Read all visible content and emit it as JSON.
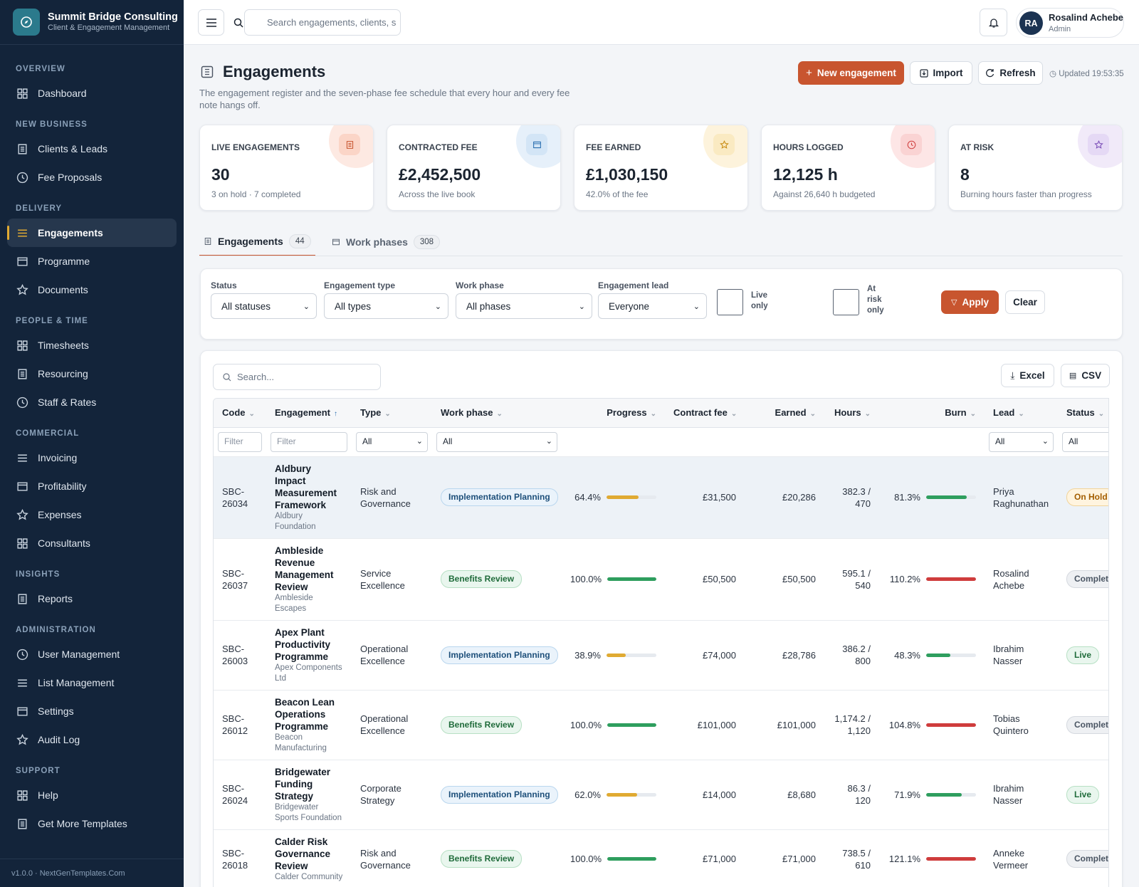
{
  "brand": {
    "name": "Summit Bridge Consulting",
    "tagline": "Client & Engagement Management"
  },
  "sidebar": {
    "sections": [
      {
        "title": "OVERVIEW",
        "items": [
          {
            "label": "Dashboard"
          }
        ]
      },
      {
        "title": "NEW BUSINESS",
        "items": [
          {
            "label": "Clients & Leads"
          },
          {
            "label": "Fee Proposals"
          }
        ]
      },
      {
        "title": "DELIVERY",
        "items": [
          {
            "label": "Engagements",
            "active": true
          },
          {
            "label": "Programme"
          },
          {
            "label": "Documents"
          }
        ]
      },
      {
        "title": "PEOPLE & TIME",
        "items": [
          {
            "label": "Timesheets"
          },
          {
            "label": "Resourcing"
          },
          {
            "label": "Staff & Rates"
          }
        ]
      },
      {
        "title": "COMMERCIAL",
        "items": [
          {
            "label": "Invoicing"
          },
          {
            "label": "Profitability"
          },
          {
            "label": "Expenses"
          },
          {
            "label": "Consultants"
          }
        ]
      },
      {
        "title": "INSIGHTS",
        "items": [
          {
            "label": "Reports"
          }
        ]
      },
      {
        "title": "ADMINISTRATION",
        "items": [
          {
            "label": "User Management"
          },
          {
            "label": "List Management"
          },
          {
            "label": "Settings"
          },
          {
            "label": "Audit Log"
          }
        ]
      },
      {
        "title": "SUPPORT",
        "items": [
          {
            "label": "Help"
          },
          {
            "label": "Get More Templates"
          }
        ]
      }
    ],
    "footer": "v1.0.0 · NextGenTemplates.Com"
  },
  "topbar": {
    "search_placeholder": "Search engagements, clients, s",
    "user": {
      "initials": "RA",
      "name": "Rosalind Achebe",
      "role": "Admin"
    }
  },
  "header": {
    "title": "Engagements",
    "subtitle": "The engagement register and the seven-phase fee schedule that every hour and every fee note hangs off.",
    "actions": {
      "new": "New engagement",
      "import": "Import",
      "refresh": "Refresh"
    },
    "updated": "Updated 19:53:35"
  },
  "stats": [
    {
      "label": "LIVE ENGAGEMENTS",
      "value": "30",
      "note": "3 on hold · 7 completed"
    },
    {
      "label": "CONTRACTED FEE",
      "value": "£2,452,500",
      "note": "Across the live book"
    },
    {
      "label": "FEE EARNED",
      "value": "£1,030,150",
      "note": "42.0% of the fee"
    },
    {
      "label": "HOURS LOGGED",
      "value": "12,125 h",
      "note": "Against 26,640 h budgeted"
    },
    {
      "label": "AT RISK",
      "value": "8",
      "note": "Burning hours faster than progress"
    }
  ],
  "tabs": [
    {
      "label": "Engagements",
      "count": 44,
      "active": true
    },
    {
      "label": "Work phases",
      "count": 308
    }
  ],
  "filters": {
    "fields": [
      {
        "label": "Status",
        "value": "All statuses"
      },
      {
        "label": "Engagement type",
        "value": "All types"
      },
      {
        "label": "Work phase",
        "value": "All phases"
      },
      {
        "label": "Engagement lead",
        "value": "Everyone"
      }
    ],
    "checks": [
      "Live only",
      "At risk only"
    ],
    "apply": "Apply",
    "clear": "Clear"
  },
  "table": {
    "search_placeholder": "Search...",
    "exports": [
      "Excel",
      "CSV"
    ],
    "columns": [
      {
        "label": "Code"
      },
      {
        "label": "Engagement",
        "sort": "asc"
      },
      {
        "label": "Type"
      },
      {
        "label": "Work phase"
      },
      {
        "label": "Progress",
        "numeric": true
      },
      {
        "label": "Contract fee",
        "numeric": true
      },
      {
        "label": "Earned",
        "numeric": true
      },
      {
        "label": "Hours",
        "numeric": true
      },
      {
        "label": "Burn",
        "numeric": true
      },
      {
        "label": "Lead"
      },
      {
        "label": "Status"
      }
    ],
    "column_filters": [
      {
        "kind": "input",
        "text": "Filter"
      },
      {
        "kind": "input",
        "text": "Filter"
      },
      {
        "kind": "select",
        "text": "All"
      },
      {
        "kind": "select",
        "text": "All"
      },
      null,
      null,
      null,
      null,
      null,
      {
        "kind": "select",
        "text": "All"
      },
      {
        "kind": "select",
        "text": "All"
      }
    ],
    "rows": [
      {
        "code": "SBC-26034",
        "name": "Aldbury Impact Measurement Framework",
        "client": "Aldbury Foundation",
        "type": "Risk and Governance",
        "phase": {
          "label": "Implementation Planning",
          "tone": "blue"
        },
        "progress": {
          "value": 64.4,
          "label": "64.4%",
          "color": "#e0aa32"
        },
        "fee": "£31,500",
        "earned": "£20,286",
        "hours": "382.3 / 470",
        "burn": {
          "value": 81.3,
          "label": "81.3%",
          "color": "#2e9e5e"
        },
        "lead": "Priya Raghunathan",
        "status": {
          "label": "On Hold",
          "tone": "amber"
        },
        "highlighted": true
      },
      {
        "code": "SBC-26037",
        "name": "Ambleside Revenue Management Review",
        "client": "Ambleside Escapes",
        "type": "Service Excellence",
        "phase": {
          "label": "Benefits Review",
          "tone": "green"
        },
        "progress": {
          "value": 100.0,
          "label": "100.0%",
          "color": "#2e9e5e"
        },
        "fee": "£50,500",
        "earned": "£50,500",
        "hours": "595.1 / 540",
        "burn": {
          "value": 110.2,
          "label": "110.2%",
          "color": "#cf3c3c"
        },
        "lead": "Rosalind Achebe",
        "status": {
          "label": "Complete",
          "tone": "gray"
        }
      },
      {
        "code": "SBC-26003",
        "name": "Apex Plant Productivity Programme",
        "client": "Apex Components Ltd",
        "type": "Operational Excellence",
        "phase": {
          "label": "Implementation Planning",
          "tone": "blue"
        },
        "progress": {
          "value": 38.9,
          "label": "38.9%",
          "color": "#e0aa32"
        },
        "fee": "£74,000",
        "earned": "£28,786",
        "hours": "386.2 / 800",
        "burn": {
          "value": 48.3,
          "label": "48.3%",
          "color": "#2e9e5e"
        },
        "lead": "Ibrahim Nasser",
        "status": {
          "label": "Live",
          "tone": "green"
        }
      },
      {
        "code": "SBC-26012",
        "name": "Beacon Lean Operations Programme",
        "client": "Beacon Manufacturing",
        "type": "Operational Excellence",
        "phase": {
          "label": "Benefits Review",
          "tone": "green"
        },
        "progress": {
          "value": 100.0,
          "label": "100.0%",
          "color": "#2e9e5e"
        },
        "fee": "£101,000",
        "earned": "£101,000",
        "hours": "1,174.2 / 1,120",
        "burn": {
          "value": 104.8,
          "label": "104.8%",
          "color": "#cf3c3c"
        },
        "lead": "Tobias Quintero",
        "status": {
          "label": "Complete",
          "tone": "gray"
        }
      },
      {
        "code": "SBC-26024",
        "name": "Bridgewater Funding Strategy",
        "client": "Bridgewater Sports Foundation",
        "type": "Corporate Strategy",
        "phase": {
          "label": "Implementation Planning",
          "tone": "blue"
        },
        "progress": {
          "value": 62.0,
          "label": "62.0%",
          "color": "#e0aa32"
        },
        "fee": "£14,000",
        "earned": "£8,680",
        "hours": "86.3 / 120",
        "burn": {
          "value": 71.9,
          "label": "71.9%",
          "color": "#2e9e5e"
        },
        "lead": "Ibrahim Nasser",
        "status": {
          "label": "Live",
          "tone": "green"
        }
      },
      {
        "code": "SBC-26018",
        "name": "Calder Risk Governance Review",
        "client": "Calder Community",
        "type": "Risk and Governance",
        "phase": {
          "label": "Benefits Review",
          "tone": "green"
        },
        "progress": {
          "value": 100.0,
          "label": "100.0%",
          "color": "#2e9e5e"
        },
        "fee": "£71,000",
        "earned": "£71,000",
        "hours": "738.5 / 610",
        "burn": {
          "value": 121.1,
          "label": "121.1%",
          "color": "#cf3c3c"
        },
        "lead": "Anneke Vermeer",
        "status": {
          "label": "Complete",
          "tone": "gray"
        }
      }
    ]
  }
}
